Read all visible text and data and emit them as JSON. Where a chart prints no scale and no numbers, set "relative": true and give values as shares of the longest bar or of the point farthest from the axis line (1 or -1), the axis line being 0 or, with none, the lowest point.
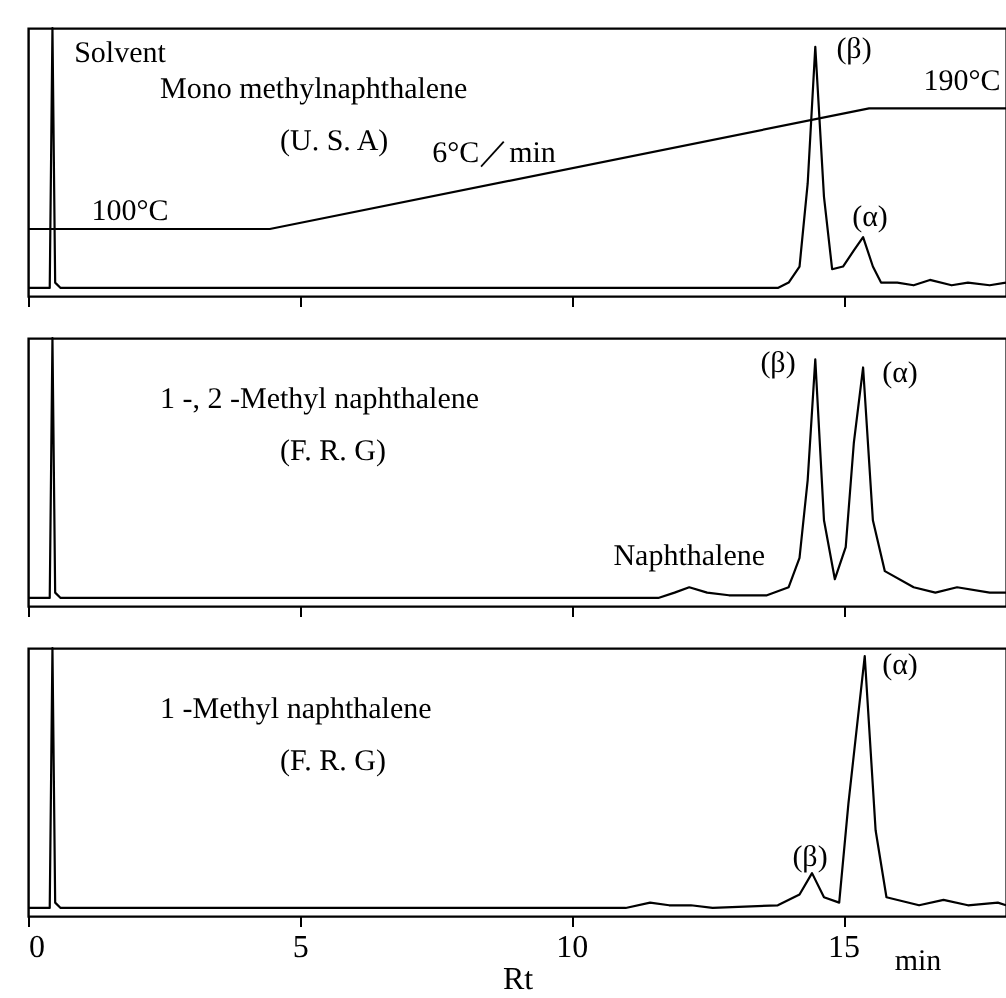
{
  "chart_data": [
    {
      "type": "line",
      "relative": true,
      "title": "Mono methylnaphthalene",
      "subtitle": "(U. S. A)",
      "xlim": [
        0,
        18
      ],
      "xticks": [
        0,
        5,
        10,
        15
      ],
      "tick_labels": false,
      "series": [
        {
          "color": "#000000",
          "x": [
            0,
            0.4,
            0.45,
            0.5,
            0.6,
            13.8,
            14.0,
            14.2,
            14.35,
            14.49,
            14.65,
            14.8,
            15.0,
            15.2,
            15.37,
            15.55,
            15.7,
            16.0,
            16.3,
            16.6,
            17.0,
            17.3,
            17.7,
            18.0
          ],
          "values": [
            0.03,
            0.03,
            1,
            0.05,
            0.03,
            0.03,
            0.05,
            0.11,
            0.42,
            0.93,
            0.37,
            0.1,
            0.11,
            0.17,
            0.22,
            0.11,
            0.05,
            0.05,
            0.04,
            0.06,
            0.04,
            0.05,
            0.04,
            0.05
          ]
        },
        {
          "color": "#000000",
          "x": [
            0,
            4.45,
            15.48,
            18.0
          ],
          "values": [
            0.25,
            0.25,
            0.7,
            0.7
          ]
        }
      ],
      "annotations": [
        "Solvent",
        "100°C",
        "6°C／min",
        "190°C",
        "(β)",
        "(α)"
      ]
    },
    {
      "type": "line",
      "relative": true,
      "title": "1 -, 2 -Methyl naphthalene",
      "subtitle": "(F. R. G)",
      "xlim": [
        0,
        18
      ],
      "xticks": [
        0,
        5,
        10,
        15
      ],
      "tick_labels": false,
      "series": [
        {
          "color": "#000000",
          "x": [
            0,
            0.4,
            0.45,
            0.5,
            0.6,
            11.6,
            11.9,
            12.17,
            12.5,
            12.9,
            13.6,
            14.0,
            14.2,
            14.35,
            14.49,
            14.65,
            14.85,
            15.05,
            15.2,
            15.37,
            15.55,
            15.77,
            16.3,
            16.7,
            17.1,
            17.7,
            18.0
          ],
          "values": [
            0.03,
            0.03,
            1,
            0.05,
            0.03,
            0.03,
            0.05,
            0.07,
            0.05,
            0.04,
            0.04,
            0.07,
            0.18,
            0.47,
            0.92,
            0.32,
            0.1,
            0.22,
            0.61,
            0.89,
            0.32,
            0.13,
            0.07,
            0.05,
            0.07,
            0.05,
            0.05
          ]
        }
      ],
      "annotations": [
        {
          "text": "Naphthalene",
          "x": 12.17,
          "y": 0.07
        },
        "(β)",
        "(α)"
      ]
    },
    {
      "type": "line",
      "relative": true,
      "title": "1 -Methyl naphthalene",
      "subtitle": "(F. R. G)",
      "xlim": [
        0,
        18
      ],
      "xticks": [
        0,
        5,
        10,
        15
      ],
      "tick_labels": "x",
      "xlabel": "Rt",
      "series": [
        {
          "color": "#000000",
          "x": [
            0,
            0.4,
            0.45,
            0.5,
            0.6,
            11.0,
            11.45,
            11.8,
            12.2,
            12.6,
            13.8,
            14.2,
            14.43,
            14.65,
            14.93,
            15.1,
            15.4,
            15.6,
            15.8,
            16.4,
            16.85,
            17.3,
            17.85,
            18.0
          ],
          "values": [
            0.03,
            0.03,
            1,
            0.05,
            0.03,
            0.03,
            0.05,
            0.04,
            0.04,
            0.03,
            0.04,
            0.08,
            0.16,
            0.07,
            0.05,
            0.42,
            0.97,
            0.32,
            0.07,
            0.04,
            0.06,
            0.04,
            0.05,
            0.04
          ]
        }
      ],
      "annotations": [
        "(β)",
        "(α)",
        "min"
      ]
    }
  ]
}
